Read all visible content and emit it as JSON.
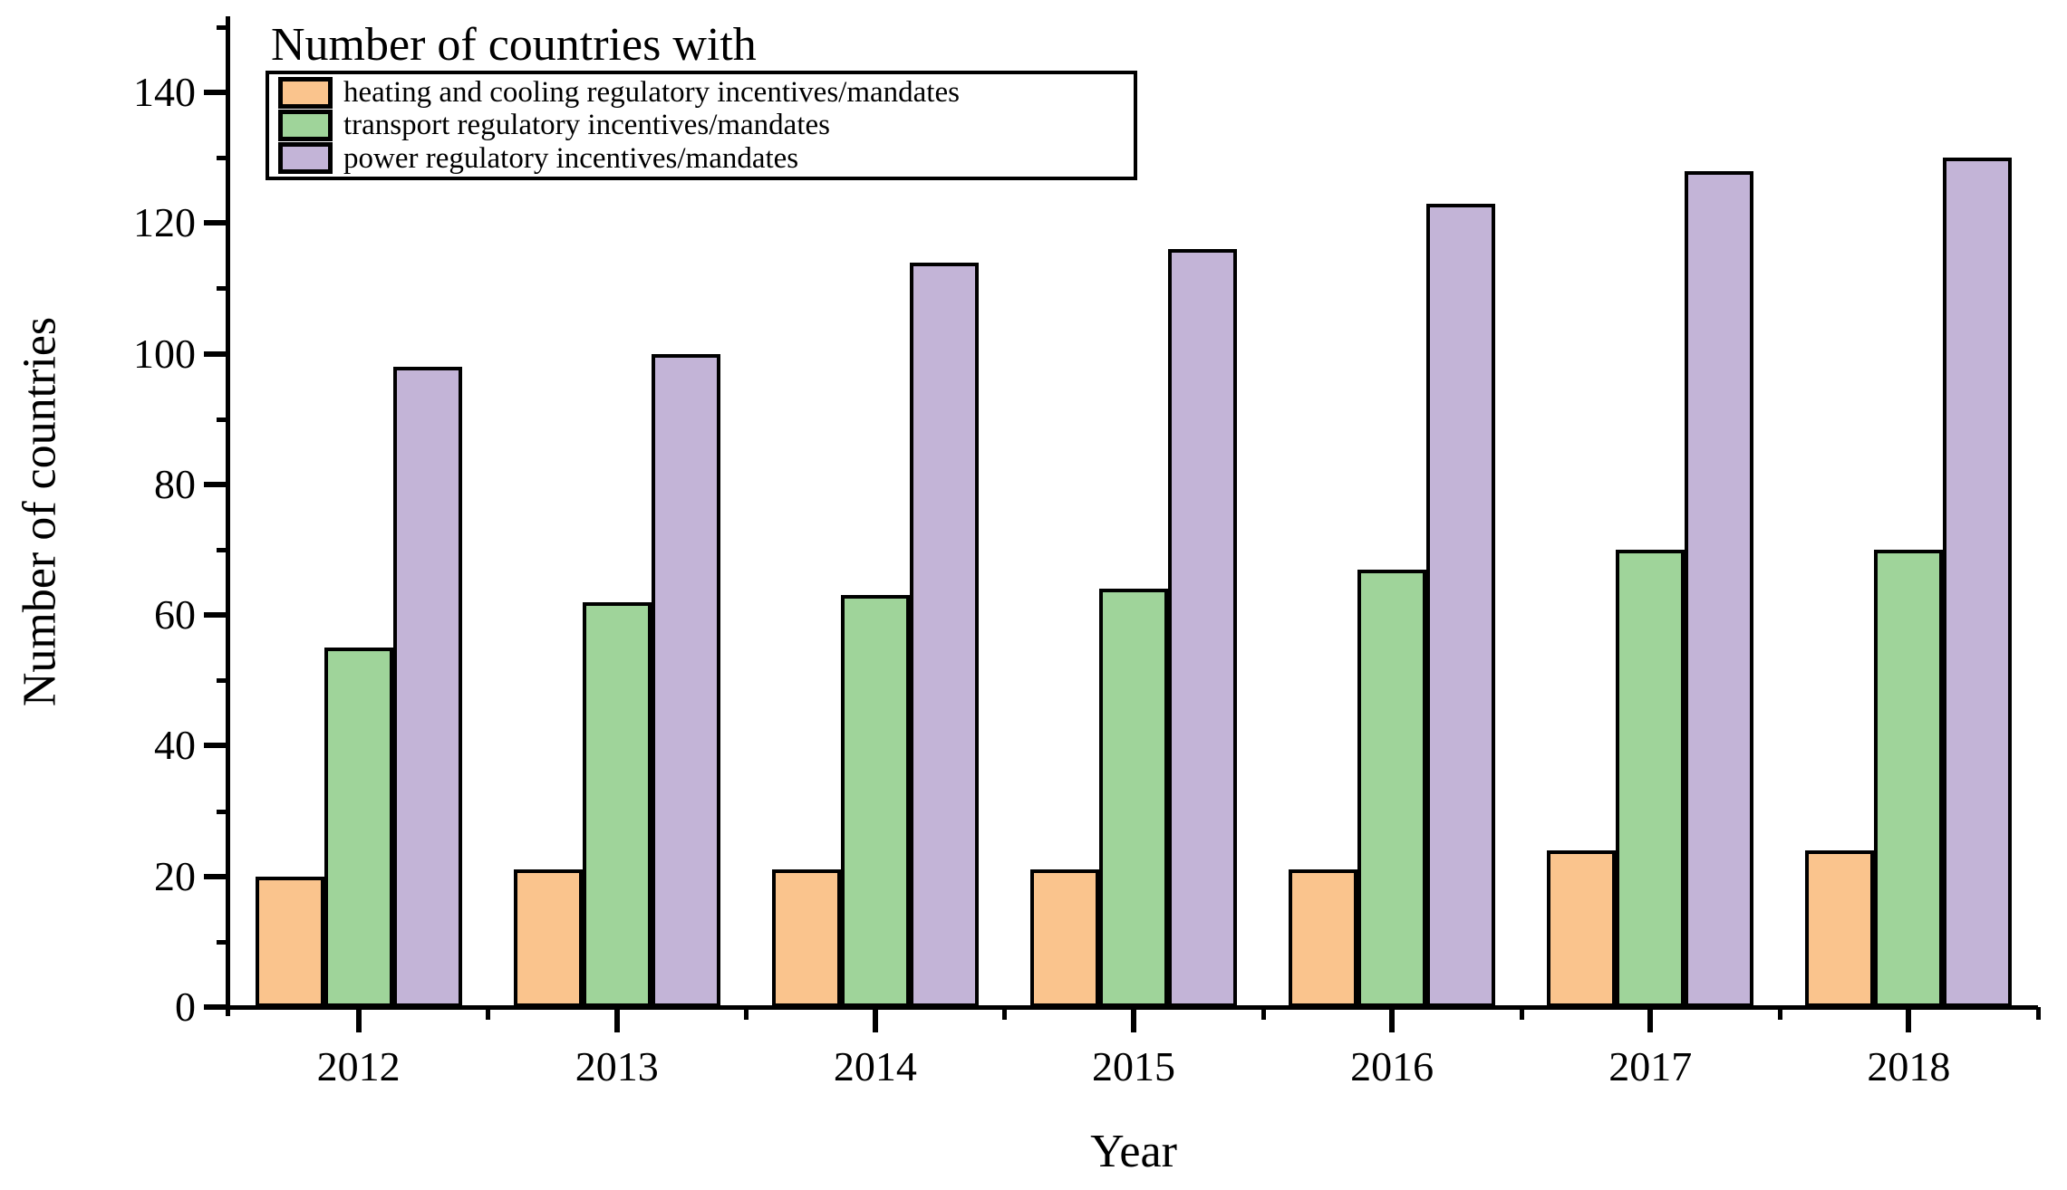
{
  "chart_data": {
    "type": "bar",
    "legend_title": "Number of countries with",
    "xlabel": "Year",
    "ylabel": "Number of countries",
    "categories": [
      "2012",
      "2013",
      "2014",
      "2015",
      "2016",
      "2017",
      "2018"
    ],
    "series": [
      {
        "name": "heating and cooling regulatory incentives/mandates",
        "color": "#FAC48D",
        "values": [
          20,
          21,
          21,
          21,
          21,
          24,
          24
        ]
      },
      {
        "name": "transport regulatory incentives/mandates",
        "color": "#9FD49A",
        "values": [
          55,
          62,
          63,
          64,
          67,
          70,
          70
        ]
      },
      {
        "name": "power regulatory incentives/mandates",
        "color": "#C3B4D7",
        "values": [
          98,
          100,
          114,
          116,
          123,
          128,
          130
        ]
      }
    ],
    "ylim": [
      0,
      150
    ],
    "yticks_major": [
      0,
      20,
      40,
      60,
      80,
      100,
      120,
      140
    ],
    "ytick_minor_step": 10,
    "legend_position": "top-left",
    "grid": false,
    "bar_edge_color": "#000000"
  }
}
